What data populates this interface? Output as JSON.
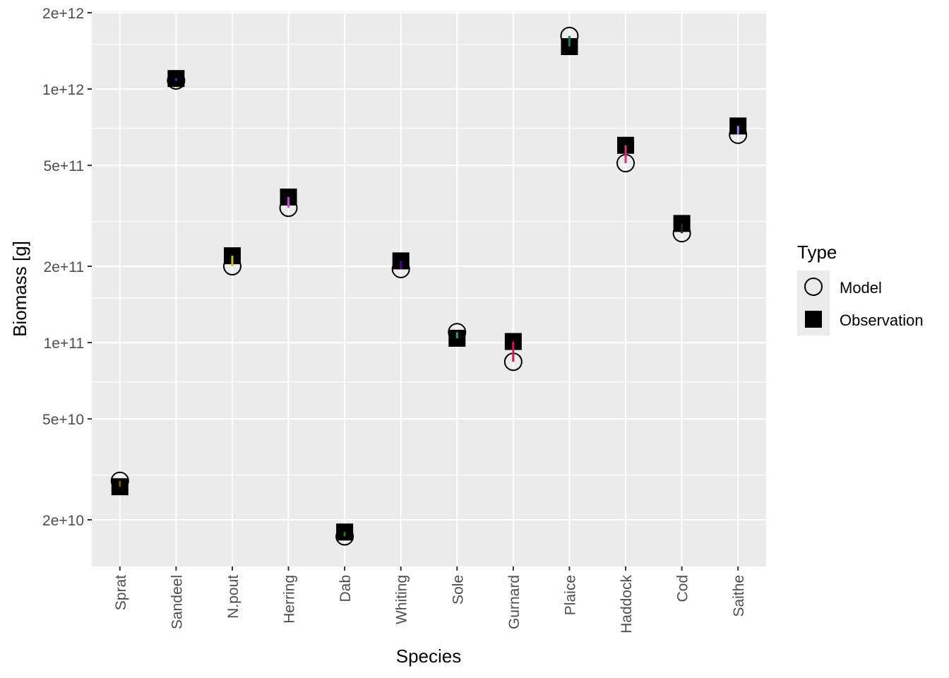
{
  "chart_data": {
    "type": "scatter",
    "xlabel": "Species",
    "ylabel": "Biomass [g]",
    "y_scale": "log10",
    "ylim": [
      11000000000,
      2000000000000
    ],
    "y_ticks": [
      {
        "value": 20000000000,
        "label": "2e+10"
      },
      {
        "value": 50000000000,
        "label": "5e+10"
      },
      {
        "value": 100000000000,
        "label": "1e+11"
      },
      {
        "value": 200000000000,
        "label": "2e+11"
      },
      {
        "value": 500000000000,
        "label": "5e+11"
      },
      {
        "value": 1000000000000,
        "label": "1e+12"
      },
      {
        "value": 2000000000000,
        "label": "2e+12"
      }
    ],
    "y_minor_ticks": [
      30000000000,
      70000000000,
      150000000000,
      300000000000,
      700000000000,
      1500000000000
    ],
    "categories": [
      "Sprat",
      "Sandeel",
      "N.pout",
      "Herring",
      "Dab",
      "Whiting",
      "Sole",
      "Gurnard",
      "Plaice",
      "Haddock",
      "Cod",
      "Saithe"
    ],
    "series": [
      {
        "name": "Model",
        "marker": "open-circle",
        "values": [
          28500000000,
          1080000000000,
          200000000000,
          340000000000,
          17200000000,
          195000000000,
          110000000000,
          84000000000,
          1620000000000,
          510000000000,
          270000000000,
          660000000000
        ]
      },
      {
        "name": "Observation",
        "marker": "filled-square",
        "values": [
          27000000000,
          1100000000000,
          220000000000,
          375000000000,
          17900000000,
          210000000000,
          104000000000,
          101000000000,
          1470000000000,
          600000000000,
          295000000000,
          715000000000
        ]
      }
    ],
    "segment_colors": [
      "#7a5c00",
      "#3b2fb0",
      "#c8c800",
      "#e040e0",
      "#1a7a1a",
      "#4b0a8a",
      "#2aa070",
      "#e0105a",
      "#137a5a",
      "#e0307a",
      "#1a2a10",
      "#9a8af0"
    ],
    "legend": {
      "title": "Type",
      "position": "right",
      "entries": [
        "Model",
        "Observation"
      ]
    },
    "grid": true,
    "panel_background": "#ebebeb",
    "grid_color": "#ffffff"
  }
}
